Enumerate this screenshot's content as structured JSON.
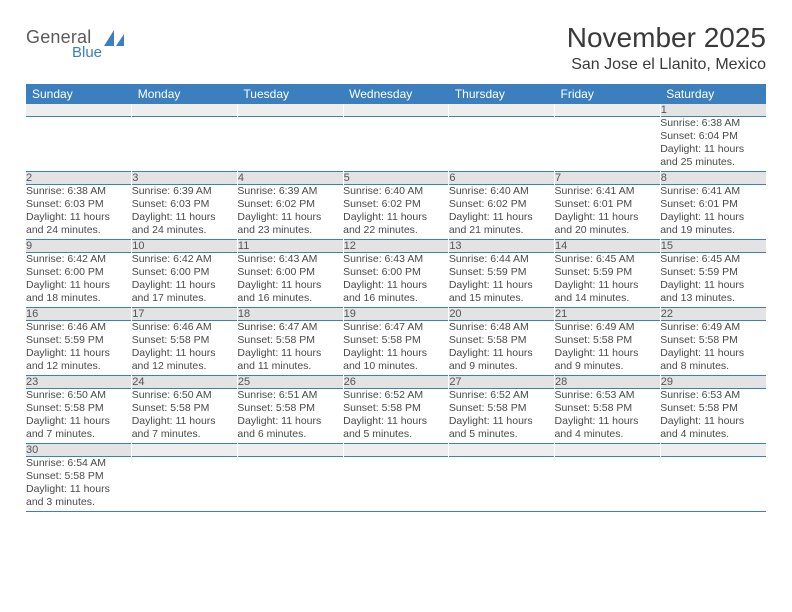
{
  "brand": {
    "first": "General",
    "second": "Blue"
  },
  "title": "November 2025",
  "location": "San Jose el Llanito, Mexico",
  "colors": {
    "header_bg": "#3b7fbf",
    "header_text": "#ffffff",
    "daynum_bg": "#e3e3e3",
    "daynum_blank_bg": "#eeeeee",
    "text": "#4a4a4a",
    "row_border": "#3b7fbf"
  },
  "weekdays": [
    "Sunday",
    "Monday",
    "Tuesday",
    "Wednesday",
    "Thursday",
    "Friday",
    "Saturday"
  ],
  "weeks": [
    [
      {
        "blank": true
      },
      {
        "blank": true
      },
      {
        "blank": true
      },
      {
        "blank": true
      },
      {
        "blank": true
      },
      {
        "blank": true
      },
      {
        "day": "1",
        "sunrise": "Sunrise: 6:38 AM",
        "sunset": "Sunset: 6:04 PM",
        "daylight1": "Daylight: 11 hours",
        "daylight2": "and 25 minutes."
      }
    ],
    [
      {
        "day": "2",
        "sunrise": "Sunrise: 6:38 AM",
        "sunset": "Sunset: 6:03 PM",
        "daylight1": "Daylight: 11 hours",
        "daylight2": "and 24 minutes."
      },
      {
        "day": "3",
        "sunrise": "Sunrise: 6:39 AM",
        "sunset": "Sunset: 6:03 PM",
        "daylight1": "Daylight: 11 hours",
        "daylight2": "and 24 minutes."
      },
      {
        "day": "4",
        "sunrise": "Sunrise: 6:39 AM",
        "sunset": "Sunset: 6:02 PM",
        "daylight1": "Daylight: 11 hours",
        "daylight2": "and 23 minutes."
      },
      {
        "day": "5",
        "sunrise": "Sunrise: 6:40 AM",
        "sunset": "Sunset: 6:02 PM",
        "daylight1": "Daylight: 11 hours",
        "daylight2": "and 22 minutes."
      },
      {
        "day": "6",
        "sunrise": "Sunrise: 6:40 AM",
        "sunset": "Sunset: 6:02 PM",
        "daylight1": "Daylight: 11 hours",
        "daylight2": "and 21 minutes."
      },
      {
        "day": "7",
        "sunrise": "Sunrise: 6:41 AM",
        "sunset": "Sunset: 6:01 PM",
        "daylight1": "Daylight: 11 hours",
        "daylight2": "and 20 minutes."
      },
      {
        "day": "8",
        "sunrise": "Sunrise: 6:41 AM",
        "sunset": "Sunset: 6:01 PM",
        "daylight1": "Daylight: 11 hours",
        "daylight2": "and 19 minutes."
      }
    ],
    [
      {
        "day": "9",
        "sunrise": "Sunrise: 6:42 AM",
        "sunset": "Sunset: 6:00 PM",
        "daylight1": "Daylight: 11 hours",
        "daylight2": "and 18 minutes."
      },
      {
        "day": "10",
        "sunrise": "Sunrise: 6:42 AM",
        "sunset": "Sunset: 6:00 PM",
        "daylight1": "Daylight: 11 hours",
        "daylight2": "and 17 minutes."
      },
      {
        "day": "11",
        "sunrise": "Sunrise: 6:43 AM",
        "sunset": "Sunset: 6:00 PM",
        "daylight1": "Daylight: 11 hours",
        "daylight2": "and 16 minutes."
      },
      {
        "day": "12",
        "sunrise": "Sunrise: 6:43 AM",
        "sunset": "Sunset: 6:00 PM",
        "daylight1": "Daylight: 11 hours",
        "daylight2": "and 16 minutes."
      },
      {
        "day": "13",
        "sunrise": "Sunrise: 6:44 AM",
        "sunset": "Sunset: 5:59 PM",
        "daylight1": "Daylight: 11 hours",
        "daylight2": "and 15 minutes."
      },
      {
        "day": "14",
        "sunrise": "Sunrise: 6:45 AM",
        "sunset": "Sunset: 5:59 PM",
        "daylight1": "Daylight: 11 hours",
        "daylight2": "and 14 minutes."
      },
      {
        "day": "15",
        "sunrise": "Sunrise: 6:45 AM",
        "sunset": "Sunset: 5:59 PM",
        "daylight1": "Daylight: 11 hours",
        "daylight2": "and 13 minutes."
      }
    ],
    [
      {
        "day": "16",
        "sunrise": "Sunrise: 6:46 AM",
        "sunset": "Sunset: 5:59 PM",
        "daylight1": "Daylight: 11 hours",
        "daylight2": "and 12 minutes."
      },
      {
        "day": "17",
        "sunrise": "Sunrise: 6:46 AM",
        "sunset": "Sunset: 5:58 PM",
        "daylight1": "Daylight: 11 hours",
        "daylight2": "and 12 minutes."
      },
      {
        "day": "18",
        "sunrise": "Sunrise: 6:47 AM",
        "sunset": "Sunset: 5:58 PM",
        "daylight1": "Daylight: 11 hours",
        "daylight2": "and 11 minutes."
      },
      {
        "day": "19",
        "sunrise": "Sunrise: 6:47 AM",
        "sunset": "Sunset: 5:58 PM",
        "daylight1": "Daylight: 11 hours",
        "daylight2": "and 10 minutes."
      },
      {
        "day": "20",
        "sunrise": "Sunrise: 6:48 AM",
        "sunset": "Sunset: 5:58 PM",
        "daylight1": "Daylight: 11 hours",
        "daylight2": "and 9 minutes."
      },
      {
        "day": "21",
        "sunrise": "Sunrise: 6:49 AM",
        "sunset": "Sunset: 5:58 PM",
        "daylight1": "Daylight: 11 hours",
        "daylight2": "and 9 minutes."
      },
      {
        "day": "22",
        "sunrise": "Sunrise: 6:49 AM",
        "sunset": "Sunset: 5:58 PM",
        "daylight1": "Daylight: 11 hours",
        "daylight2": "and 8 minutes."
      }
    ],
    [
      {
        "day": "23",
        "sunrise": "Sunrise: 6:50 AM",
        "sunset": "Sunset: 5:58 PM",
        "daylight1": "Daylight: 11 hours",
        "daylight2": "and 7 minutes."
      },
      {
        "day": "24",
        "sunrise": "Sunrise: 6:50 AM",
        "sunset": "Sunset: 5:58 PM",
        "daylight1": "Daylight: 11 hours",
        "daylight2": "and 7 minutes."
      },
      {
        "day": "25",
        "sunrise": "Sunrise: 6:51 AM",
        "sunset": "Sunset: 5:58 PM",
        "daylight1": "Daylight: 11 hours",
        "daylight2": "and 6 minutes."
      },
      {
        "day": "26",
        "sunrise": "Sunrise: 6:52 AM",
        "sunset": "Sunset: 5:58 PM",
        "daylight1": "Daylight: 11 hours",
        "daylight2": "and 5 minutes."
      },
      {
        "day": "27",
        "sunrise": "Sunrise: 6:52 AM",
        "sunset": "Sunset: 5:58 PM",
        "daylight1": "Daylight: 11 hours",
        "daylight2": "and 5 minutes."
      },
      {
        "day": "28",
        "sunrise": "Sunrise: 6:53 AM",
        "sunset": "Sunset: 5:58 PM",
        "daylight1": "Daylight: 11 hours",
        "daylight2": "and 4 minutes."
      },
      {
        "day": "29",
        "sunrise": "Sunrise: 6:53 AM",
        "sunset": "Sunset: 5:58 PM",
        "daylight1": "Daylight: 11 hours",
        "daylight2": "and 4 minutes."
      }
    ],
    [
      {
        "day": "30",
        "sunrise": "Sunrise: 6:54 AM",
        "sunset": "Sunset: 5:58 PM",
        "daylight1": "Daylight: 11 hours",
        "daylight2": "and 3 minutes."
      },
      {
        "blank": true
      },
      {
        "blank": true
      },
      {
        "blank": true
      },
      {
        "blank": true
      },
      {
        "blank": true
      },
      {
        "blank": true
      }
    ]
  ]
}
